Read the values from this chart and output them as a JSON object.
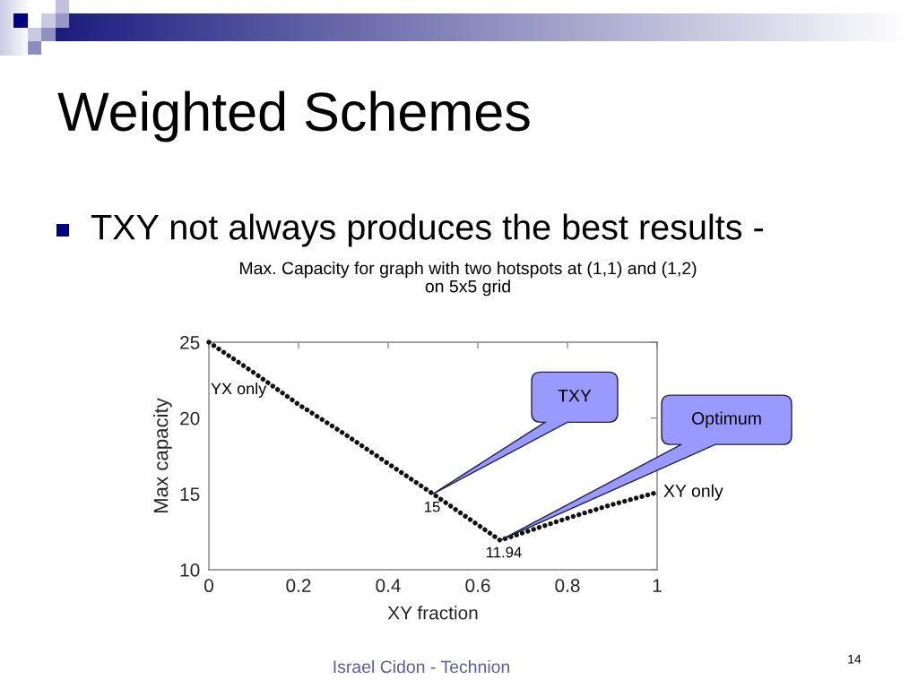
{
  "chart_data": {
    "type": "line",
    "title": "Weighted Schemes",
    "subtitle": "TXY not always produces the best results -",
    "xlabel": "XY fraction",
    "ylabel": "Max capacity",
    "x": [
      0,
      0.1,
      0.2,
      0.3,
      0.4,
      0.5,
      0.65,
      0.8,
      0.9,
      1
    ],
    "series": [
      {
        "color": "#111111",
        "values": [
          25,
          23.0,
          20.9,
          19.0,
          17.0,
          15,
          11.94,
          13.4,
          14.3,
          15.1
        ]
      }
    ],
    "line_style": "dotted",
    "xlim": [
      0,
      1
    ],
    "ylim": [
      10,
      25
    ],
    "xticks": [
      0,
      0.2,
      0.4,
      0.6,
      0.8,
      1
    ],
    "yticks": [
      10,
      15,
      20,
      25
    ],
    "annotations": [
      "Max. Capacity for graph with two hotspots at (1,1) and (1,2)\non 5x5 grid",
      "Israel Cidon - Technion",
      "14",
      {
        "text": "YX only",
        "x": 0,
        "y": 25
      },
      {
        "text": "XY only",
        "x": 1,
        "y": 15.1
      },
      {
        "text": "15",
        "x": 0.5,
        "y": 15
      },
      {
        "text": "11.94",
        "x": 0.65,
        "y": 11.94
      },
      "TXY",
      "Optimum"
    ]
  }
}
